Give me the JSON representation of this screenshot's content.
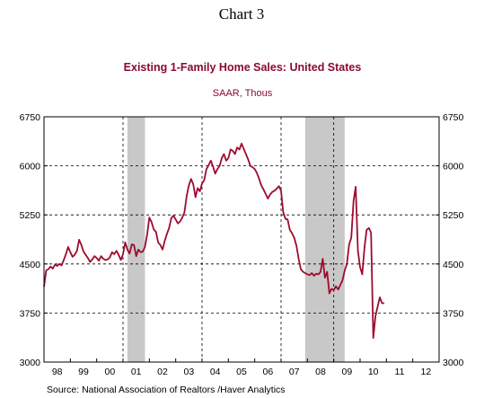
{
  "page": {
    "heading": "Chart 3"
  },
  "chart_data": {
    "type": "line",
    "title": "Existing 1-Family Home Sales: United States",
    "subtitle": "SAAR, Thous",
    "source": "Source:  National Association of Realtors /Haver Analytics",
    "colors": {
      "title": "#8b0a2e",
      "line": "#9e0b2d",
      "recession": "#c8c8c8"
    },
    "ylim": [
      3000,
      6750
    ],
    "yticks": [
      3000,
      3750,
      4500,
      5250,
      6000,
      6750
    ],
    "ytick_labels": [
      "3000",
      "3750",
      "4500",
      "5250",
      "6000",
      "6750"
    ],
    "xlim": [
      "1998-01",
      "2013-01"
    ],
    "xtick_labels": [
      "98",
      "99",
      "00",
      "01",
      "02",
      "03",
      "04",
      "05",
      "06",
      "07",
      "08",
      "09",
      "10",
      "11",
      "12"
    ],
    "gridlines_years": [
      2001,
      2004,
      2007,
      2009
    ],
    "recessions": [
      {
        "start": "2001-03",
        "end": "2001-11"
      },
      {
        "start": "2007-12",
        "end": "2009-06"
      }
    ],
    "series": [
      {
        "values": [
          [
            "1998-01",
            4150
          ],
          [
            "1998-02",
            4400
          ],
          [
            "1998-03",
            4420
          ],
          [
            "1998-04",
            4460
          ],
          [
            "1998-05",
            4430
          ],
          [
            "1998-06",
            4490
          ],
          [
            "1998-07",
            4470
          ],
          [
            "1998-08",
            4500
          ],
          [
            "1998-09",
            4480
          ],
          [
            "1998-10",
            4560
          ],
          [
            "1998-11",
            4650
          ],
          [
            "1998-12",
            4760
          ],
          [
            "1999-01",
            4680
          ],
          [
            "1999-02",
            4610
          ],
          [
            "1999-03",
            4640
          ],
          [
            "1999-04",
            4700
          ],
          [
            "1999-05",
            4870
          ],
          [
            "1999-06",
            4790
          ],
          [
            "1999-07",
            4690
          ],
          [
            "1999-08",
            4640
          ],
          [
            "1999-09",
            4590
          ],
          [
            "1999-10",
            4530
          ],
          [
            "1999-11",
            4570
          ],
          [
            "1999-12",
            4620
          ],
          [
            "2000-01",
            4590
          ],
          [
            "2000-02",
            4550
          ],
          [
            "2000-03",
            4620
          ],
          [
            "2000-04",
            4580
          ],
          [
            "2000-05",
            4560
          ],
          [
            "2000-06",
            4570
          ],
          [
            "2000-07",
            4600
          ],
          [
            "2000-08",
            4680
          ],
          [
            "2000-09",
            4650
          ],
          [
            "2000-10",
            4700
          ],
          [
            "2000-11",
            4640
          ],
          [
            "2000-12",
            4560
          ],
          [
            "2001-01",
            4650
          ],
          [
            "2001-02",
            4830
          ],
          [
            "2001-03",
            4720
          ],
          [
            "2001-04",
            4660
          ],
          [
            "2001-05",
            4800
          ],
          [
            "2001-06",
            4790
          ],
          [
            "2001-07",
            4620
          ],
          [
            "2001-08",
            4720
          ],
          [
            "2001-09",
            4680
          ],
          [
            "2001-10",
            4690
          ],
          [
            "2001-11",
            4760
          ],
          [
            "2001-12",
            4950
          ],
          [
            "2002-01",
            5210
          ],
          [
            "2002-02",
            5140
          ],
          [
            "2002-03",
            5030
          ],
          [
            "2002-04",
            4990
          ],
          [
            "2002-05",
            4830
          ],
          [
            "2002-06",
            4790
          ],
          [
            "2002-07",
            4720
          ],
          [
            "2002-08",
            4850
          ],
          [
            "2002-09",
            4960
          ],
          [
            "2002-10",
            5050
          ],
          [
            "2002-11",
            5200
          ],
          [
            "2002-12",
            5240
          ],
          [
            "2003-01",
            5180
          ],
          [
            "2003-02",
            5120
          ],
          [
            "2003-03",
            5150
          ],
          [
            "2003-04",
            5210
          ],
          [
            "2003-05",
            5290
          ],
          [
            "2003-06",
            5540
          ],
          [
            "2003-07",
            5700
          ],
          [
            "2003-08",
            5800
          ],
          [
            "2003-09",
            5720
          ],
          [
            "2003-10",
            5520
          ],
          [
            "2003-11",
            5660
          ],
          [
            "2003-12",
            5610
          ],
          [
            "2004-01",
            5730
          ],
          [
            "2004-02",
            5780
          ],
          [
            "2004-03",
            5950
          ],
          [
            "2004-04",
            6010
          ],
          [
            "2004-05",
            6080
          ],
          [
            "2004-06",
            5990
          ],
          [
            "2004-07",
            5880
          ],
          [
            "2004-08",
            5950
          ],
          [
            "2004-09",
            6000
          ],
          [
            "2004-10",
            6120
          ],
          [
            "2004-11",
            6180
          ],
          [
            "2004-12",
            6080
          ],
          [
            "2005-01",
            6120
          ],
          [
            "2005-02",
            6250
          ],
          [
            "2005-03",
            6230
          ],
          [
            "2005-04",
            6180
          ],
          [
            "2005-05",
            6280
          ],
          [
            "2005-06",
            6250
          ],
          [
            "2005-07",
            6340
          ],
          [
            "2005-08",
            6260
          ],
          [
            "2005-09",
            6180
          ],
          [
            "2005-10",
            6100
          ],
          [
            "2005-11",
            6000
          ],
          [
            "2005-12",
            5980
          ],
          [
            "2006-01",
            5950
          ],
          [
            "2006-02",
            5890
          ],
          [
            "2006-03",
            5800
          ],
          [
            "2006-04",
            5700
          ],
          [
            "2006-05",
            5640
          ],
          [
            "2006-06",
            5570
          ],
          [
            "2006-07",
            5500
          ],
          [
            "2006-08",
            5560
          ],
          [
            "2006-09",
            5600
          ],
          [
            "2006-10",
            5620
          ],
          [
            "2006-11",
            5650
          ],
          [
            "2006-12",
            5690
          ],
          [
            "2007-01",
            5620
          ],
          [
            "2007-02",
            5290
          ],
          [
            "2007-03",
            5190
          ],
          [
            "2007-04",
            5180
          ],
          [
            "2007-05",
            5020
          ],
          [
            "2007-06",
            4970
          ],
          [
            "2007-07",
            4900
          ],
          [
            "2007-08",
            4780
          ],
          [
            "2007-09",
            4580
          ],
          [
            "2007-10",
            4420
          ],
          [
            "2007-11",
            4380
          ],
          [
            "2007-12",
            4360
          ],
          [
            "2008-01",
            4340
          ],
          [
            "2008-02",
            4330
          ],
          [
            "2008-03",
            4360
          ],
          [
            "2008-04",
            4320
          ],
          [
            "2008-05",
            4350
          ],
          [
            "2008-06",
            4340
          ],
          [
            "2008-07",
            4380
          ],
          [
            "2008-08",
            4580
          ],
          [
            "2008-09",
            4290
          ],
          [
            "2008-10",
            4380
          ],
          [
            "2008-11",
            4050
          ],
          [
            "2008-12",
            4120
          ],
          [
            "2009-01",
            4100
          ],
          [
            "2009-02",
            4160
          ],
          [
            "2009-03",
            4110
          ],
          [
            "2009-04",
            4180
          ],
          [
            "2009-05",
            4250
          ],
          [
            "2009-06",
            4400
          ],
          [
            "2009-07",
            4500
          ],
          [
            "2009-08",
            4800
          ],
          [
            "2009-09",
            4900
          ],
          [
            "2009-10",
            5460
          ],
          [
            "2009-11",
            5680
          ],
          [
            "2009-12",
            4700
          ],
          [
            "2010-01",
            4450
          ],
          [
            "2010-02",
            4340
          ],
          [
            "2010-03",
            4750
          ],
          [
            "2010-04",
            5020
          ],
          [
            "2010-05",
            5050
          ],
          [
            "2010-06",
            4980
          ],
          [
            "2010-07",
            3370
          ],
          [
            "2010-08",
            3700
          ],
          [
            "2010-09",
            3850
          ],
          [
            "2010-10",
            3990
          ],
          [
            "2010-11",
            3900
          ],
          [
            "2010-12",
            3900
          ]
        ]
      }
    ]
  }
}
